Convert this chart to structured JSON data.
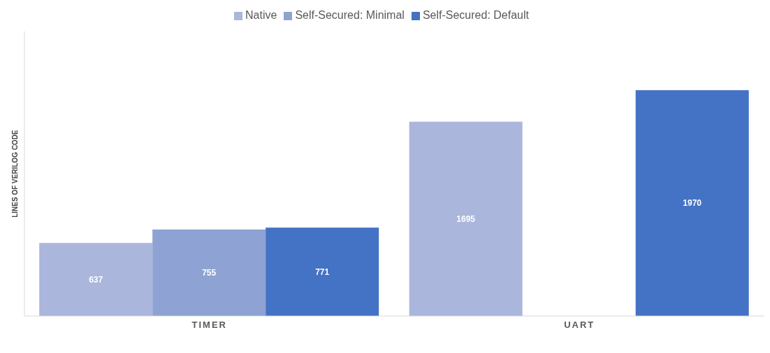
{
  "chart_data": {
    "type": "bar",
    "categories": [
      "TIMER",
      "UART"
    ],
    "ylabel": "LINES OF VERILOG CODE",
    "series": [
      {
        "name": "Native",
        "color": "#aab6dc",
        "values": [
          637,
          1695
        ]
      },
      {
        "name": "Self-Secured: Minimal",
        "color": "#8fa2d4",
        "values": [
          755,
          null
        ]
      },
      {
        "name": "Self-Secured: Default",
        "color": "#4472c4",
        "values": [
          771,
          1970
        ]
      }
    ],
    "data_labels": true,
    "legend": "top",
    "grid": false
  }
}
